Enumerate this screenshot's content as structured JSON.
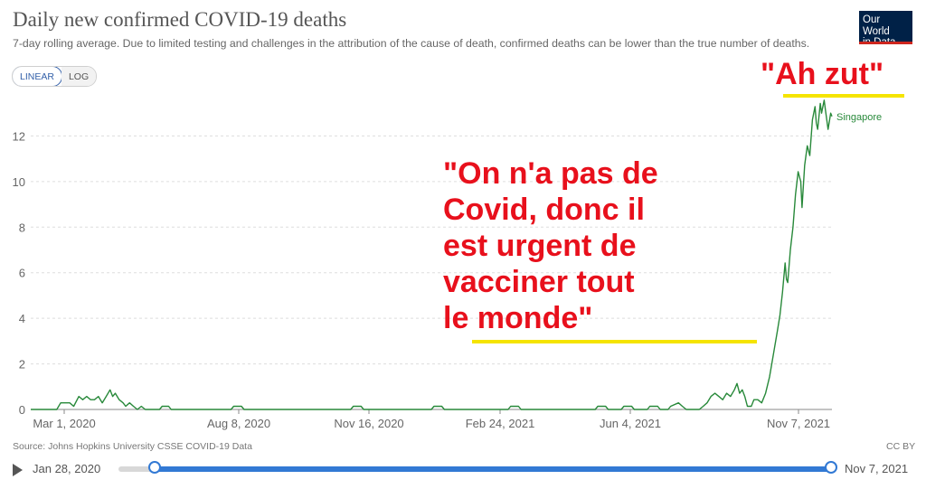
{
  "header": {
    "title": "Daily new confirmed COVID-19 deaths",
    "subtitle": "7-day rolling average. Due to limited testing and challenges in the attribution of the cause of death, confirmed deaths can be lower than the true number of deaths.",
    "logo_line1": "Our World",
    "logo_line2": "in Data"
  },
  "scale_toggle": {
    "linear": "LINEAR",
    "log": "LOG",
    "selected": "LINEAR"
  },
  "chart_data": {
    "type": "line",
    "title": "Daily new confirmed COVID-19 deaths",
    "xlabel": "",
    "ylabel": "",
    "x_tick_labels": [
      "Mar 1, 2020",
      "Aug 8, 2020",
      "Nov 16, 2020",
      "Feb 24, 2021",
      "Jun 4, 2021",
      "Nov 7, 2021"
    ],
    "y_tick_labels": [
      "0",
      "2",
      "4",
      "6",
      "8",
      "10",
      "12"
    ],
    "ylim": [
      0,
      14
    ],
    "xlim": [
      "2020-03-01",
      "2021-11-07"
    ],
    "grid": "horizontal-dashed",
    "color": "#28893a",
    "series": [
      {
        "name": "Singapore",
        "points": [
          [
            "2020-03-01",
            0
          ],
          [
            "2020-03-21",
            0
          ],
          [
            "2020-03-24",
            0.29
          ],
          [
            "2020-03-31",
            0.29
          ],
          [
            "2020-04-03",
            0.14
          ],
          [
            "2020-04-07",
            0.57
          ],
          [
            "2020-04-10",
            0.43
          ],
          [
            "2020-04-13",
            0.57
          ],
          [
            "2020-04-16",
            0.43
          ],
          [
            "2020-04-19",
            0.43
          ],
          [
            "2020-04-22",
            0.57
          ],
          [
            "2020-04-25",
            0.29
          ],
          [
            "2020-04-28",
            0.57
          ],
          [
            "2020-05-01",
            0.86
          ],
          [
            "2020-05-03",
            0.57
          ],
          [
            "2020-05-05",
            0.71
          ],
          [
            "2020-05-08",
            0.43
          ],
          [
            "2020-05-11",
            0.29
          ],
          [
            "2020-05-13",
            0.14
          ],
          [
            "2020-05-16",
            0.29
          ],
          [
            "2020-05-19",
            0.14
          ],
          [
            "2020-05-22",
            0
          ],
          [
            "2020-05-25",
            0.14
          ],
          [
            "2020-05-28",
            0
          ],
          [
            "2020-06-08",
            0
          ],
          [
            "2020-06-10",
            0.14
          ],
          [
            "2020-06-15",
            0.14
          ],
          [
            "2020-06-17",
            0
          ],
          [
            "2020-08-02",
            0
          ],
          [
            "2020-08-04",
            0.14
          ],
          [
            "2020-08-10",
            0.14
          ],
          [
            "2020-08-12",
            0
          ],
          [
            "2020-11-02",
            0
          ],
          [
            "2020-11-04",
            0.14
          ],
          [
            "2020-11-10",
            0.14
          ],
          [
            "2020-11-12",
            0
          ],
          [
            "2021-01-03",
            0
          ],
          [
            "2021-01-05",
            0.14
          ],
          [
            "2021-01-11",
            0.14
          ],
          [
            "2021-01-13",
            0
          ],
          [
            "2021-03-03",
            0
          ],
          [
            "2021-03-05",
            0.14
          ],
          [
            "2021-03-11",
            0.14
          ],
          [
            "2021-03-13",
            0
          ],
          [
            "2021-05-09",
            0
          ],
          [
            "2021-05-11",
            0.14
          ],
          [
            "2021-05-17",
            0.14
          ],
          [
            "2021-05-19",
            0
          ],
          [
            "2021-05-29",
            0
          ],
          [
            "2021-05-31",
            0.14
          ],
          [
            "2021-06-06",
            0.14
          ],
          [
            "2021-06-08",
            0
          ],
          [
            "2021-06-18",
            0
          ],
          [
            "2021-06-20",
            0.14
          ],
          [
            "2021-06-26",
            0.14
          ],
          [
            "2021-06-28",
            0
          ],
          [
            "2021-07-04",
            0
          ],
          [
            "2021-07-06",
            0.14
          ],
          [
            "2021-07-12",
            0.29
          ],
          [
            "2021-07-15",
            0.14
          ],
          [
            "2021-07-18",
            0
          ],
          [
            "2021-07-28",
            0
          ],
          [
            "2021-07-31",
            0.14
          ],
          [
            "2021-08-03",
            0.29
          ],
          [
            "2021-08-06",
            0.57
          ],
          [
            "2021-08-09",
            0.71
          ],
          [
            "2021-08-12",
            0.57
          ],
          [
            "2021-08-15",
            0.43
          ],
          [
            "2021-08-18",
            0.71
          ],
          [
            "2021-08-21",
            0.57
          ],
          [
            "2021-08-24",
            0.86
          ],
          [
            "2021-08-26",
            1.14
          ],
          [
            "2021-08-28",
            0.71
          ],
          [
            "2021-08-30",
            0.86
          ],
          [
            "2021-09-01",
            0.57
          ],
          [
            "2021-09-03",
            0.14
          ],
          [
            "2021-09-06",
            0.14
          ],
          [
            "2021-09-08",
            0.43
          ],
          [
            "2021-09-11",
            0.43
          ],
          [
            "2021-09-14",
            0.29
          ],
          [
            "2021-09-17",
            0.71
          ],
          [
            "2021-09-20",
            1.43
          ],
          [
            "2021-09-23",
            2.43
          ],
          [
            "2021-09-26",
            3.43
          ],
          [
            "2021-09-28",
            4.14
          ],
          [
            "2021-09-30",
            5.14
          ],
          [
            "2021-10-02",
            6.43
          ],
          [
            "2021-10-03",
            5.71
          ],
          [
            "2021-10-04",
            5.57
          ],
          [
            "2021-10-06",
            7.0
          ],
          [
            "2021-10-08",
            8.0
          ],
          [
            "2021-10-10",
            9.43
          ],
          [
            "2021-10-12",
            10.43
          ],
          [
            "2021-10-14",
            10.0
          ],
          [
            "2021-10-15",
            8.86
          ],
          [
            "2021-10-17",
            10.71
          ],
          [
            "2021-10-19",
            11.57
          ],
          [
            "2021-10-21",
            11.14
          ],
          [
            "2021-10-23",
            12.71
          ],
          [
            "2021-10-25",
            13.29
          ],
          [
            "2021-10-26",
            12.57
          ],
          [
            "2021-10-27",
            12.29
          ],
          [
            "2021-10-29",
            13.43
          ],
          [
            "2021-10-30",
            13.0
          ],
          [
            "2021-11-01",
            13.57
          ],
          [
            "2021-11-02",
            13.14
          ],
          [
            "2021-11-04",
            12.29
          ],
          [
            "2021-11-06",
            13.0
          ],
          [
            "2021-11-07",
            12.86
          ]
        ]
      }
    ]
  },
  "annotations": {
    "big_quote": "\"On n'a pas de\nCovid, donc il\nest urgent de\nvacciner tout\nle monde\"",
    "small_quote": "\"Ah zut\"",
    "highlight_color": "#f5e400",
    "text_color": "#e8101c"
  },
  "footer": {
    "source": "Source: Johns Hopkins University CSSE COVID-19 Data",
    "license": "CC BY",
    "timeline_start": "Jan 28, 2020",
    "timeline_end": "Nov 7, 2021"
  }
}
